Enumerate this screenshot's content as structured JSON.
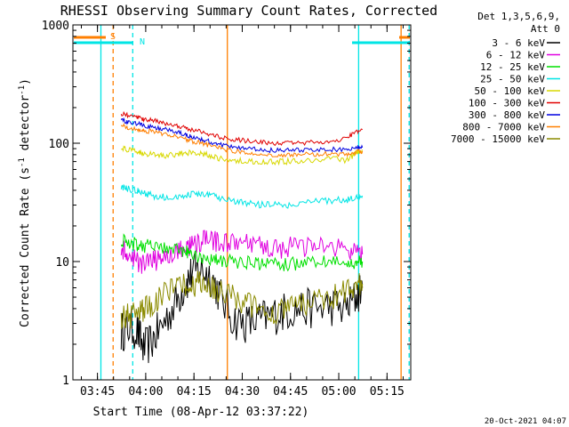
{
  "chart_data": {
    "type": "line",
    "title": "RHESSI Observing Summary Count Rates, Corrected",
    "xlabel": "Start Time (08-Apr-12 03:37:22)",
    "ylabel_main": "Corrected Count Rate (s",
    "ylabel_sup1": "-1",
    "ylabel_mid": " detector",
    "ylabel_sup2": "-1",
    "ylabel_end": ")",
    "yscale": "log",
    "ylim": [
      1,
      1000
    ],
    "xlim_minutes": [
      0,
      105
    ],
    "y_ticks": [
      {
        "value": 1,
        "label": "1"
      },
      {
        "value": 10,
        "label": "10"
      },
      {
        "value": 100,
        "label": "100"
      },
      {
        "value": 1000,
        "label": "1000"
      }
    ],
    "x_ticks": [
      {
        "minute": 7.63,
        "label": "03:45"
      },
      {
        "minute": 22.63,
        "label": "04:00"
      },
      {
        "minute": 37.63,
        "label": "04:15"
      },
      {
        "minute": 52.63,
        "label": "04:30"
      },
      {
        "minute": 67.63,
        "label": "04:45"
      },
      {
        "minute": 82.63,
        "label": "05:00"
      },
      {
        "minute": 97.63,
        "label": "05:15"
      }
    ],
    "legend_header": [
      "Det 1,3,5,6,9,",
      "Att 0"
    ],
    "legend_position": "right",
    "flag_labels": [
      {
        "text": "S",
        "color": "#ff7f00"
      },
      {
        "text": "N",
        "color": "#00e5e5"
      }
    ],
    "flag_lines": [
      {
        "minute": 8.7,
        "color": "#00e5e5",
        "style": "solid"
      },
      {
        "minute": 12.5,
        "color": "#ff7f00",
        "style": "dashed"
      },
      {
        "minute": 18.6,
        "color": "#00e5e5",
        "style": "dashed"
      },
      {
        "minute": 48.0,
        "color": "#ff7f00",
        "style": "solid"
      },
      {
        "minute": 88.8,
        "color": "#00e5e5",
        "style": "solid"
      },
      {
        "minute": 102.0,
        "color": "#ff7f00",
        "style": "solid"
      },
      {
        "minute": 104.5,
        "color": "#00e5e5",
        "style": "dashed"
      }
    ],
    "series": [
      {
        "name": "3 - 6 keV",
        "color": "#000000",
        "x": [
          15,
          17,
          20,
          22,
          25,
          28,
          32,
          35,
          37,
          40,
          43,
          46,
          50,
          54,
          58,
          62,
          66,
          70,
          75,
          80,
          85,
          88,
          90
        ],
        "y": [
          2.5,
          2.8,
          2.6,
          1.8,
          2.2,
          3.0,
          4.5,
          6.5,
          8.0,
          8.5,
          7.5,
          5.0,
          3.2,
          3.0,
          3.2,
          3.5,
          3.8,
          4.0,
          4.0,
          4.2,
          4.0,
          5.0,
          6.0
        ]
      },
      {
        "name": "6 - 12 keV",
        "color": "#e000e0",
        "x": [
          15,
          17,
          20,
          22,
          25,
          28,
          32,
          35,
          37,
          40,
          43,
          46,
          50,
          54,
          58,
          62,
          66,
          70,
          75,
          80,
          85,
          88,
          90
        ],
        "y": [
          13,
          11,
          10,
          9.5,
          10,
          11,
          12,
          13,
          14,
          15,
          15,
          14.5,
          14,
          14,
          13.5,
          13,
          13,
          13.5,
          13,
          13.5,
          12.5,
          11.5,
          11.5
        ]
      },
      {
        "name": "12 - 25 keV",
        "color": "#00e000",
        "x": [
          15,
          17,
          20,
          22,
          25,
          28,
          32,
          35,
          37,
          40,
          43,
          46,
          50,
          54,
          58,
          62,
          66,
          70,
          75,
          80,
          85,
          88,
          90
        ],
        "y": [
          15,
          14.5,
          14,
          13.5,
          13.5,
          13,
          12.5,
          12,
          11.5,
          11,
          10.5,
          10,
          10,
          9.8,
          9.6,
          9.5,
          9.5,
          9.6,
          9.8,
          10,
          9.5,
          9.8,
          10
        ]
      },
      {
        "name": "25 - 50 keV",
        "color": "#00e5e5",
        "x": [
          15,
          17,
          20,
          22,
          25,
          28,
          32,
          35,
          37,
          40,
          43,
          46,
          50,
          54,
          58,
          62,
          66,
          70,
          75,
          80,
          85,
          88,
          90
        ],
        "y": [
          42,
          41,
          40,
          38,
          36,
          35,
          35,
          36,
          37,
          37,
          36,
          34,
          32,
          31,
          30,
          30,
          30,
          31,
          32,
          33,
          33,
          35,
          36
        ]
      },
      {
        "name": "50 - 100 keV",
        "color": "#d8d800",
        "x": [
          15,
          17,
          20,
          22,
          25,
          28,
          32,
          35,
          37,
          40,
          43,
          46,
          50,
          54,
          58,
          62,
          66,
          70,
          75,
          80,
          85,
          88,
          90
        ],
        "y": [
          90,
          88,
          85,
          82,
          80,
          78,
          80,
          83,
          84,
          82,
          78,
          74,
          72,
          70,
          70,
          70,
          70,
          71,
          72,
          74,
          72,
          82,
          88
        ]
      },
      {
        "name": "100 - 300 keV",
        "color": "#e00000",
        "x": [
          15,
          17,
          20,
          22,
          25,
          28,
          32,
          35,
          37,
          40,
          43,
          46,
          50,
          54,
          58,
          62,
          66,
          70,
          75,
          80,
          85,
          88,
          90
        ],
        "y": [
          178,
          172,
          165,
          160,
          155,
          150,
          140,
          135,
          130,
          125,
          118,
          112,
          108,
          105,
          102,
          100,
          100,
          100,
          102,
          105,
          110,
          125,
          130
        ]
      },
      {
        "name": "300 - 800 keV",
        "color": "#0000e0",
        "x": [
          15,
          17,
          20,
          22,
          25,
          28,
          32,
          35,
          37,
          40,
          43,
          46,
          50,
          54,
          58,
          62,
          66,
          70,
          75,
          80,
          85,
          88,
          90
        ],
        "y": [
          158,
          152,
          146,
          140,
          136,
          132,
          124,
          118,
          112,
          108,
          102,
          97,
          93,
          90,
          88,
          87,
          87,
          88,
          88,
          89,
          88,
          92,
          92
        ]
      },
      {
        "name": "800 - 7000 keV",
        "color": "#ff7f00",
        "x": [
          15,
          17,
          20,
          22,
          25,
          28,
          32,
          35,
          37,
          40,
          43,
          46,
          50,
          54,
          58,
          62,
          66,
          70,
          75,
          80,
          85,
          88,
          90
        ],
        "y": [
          142,
          137,
          132,
          128,
          124,
          120,
          114,
          108,
          104,
          100,
          95,
          90,
          86,
          83,
          80,
          80,
          79,
          80,
          81,
          82,
          80,
          84,
          86
        ]
      },
      {
        "name": "7000 - 15000 keV",
        "color": "#8b8b00",
        "x": [
          15,
          17,
          20,
          22,
          25,
          28,
          32,
          35,
          37,
          40,
          43,
          46,
          50,
          54,
          58,
          62,
          66,
          70,
          75,
          80,
          85,
          88,
          90
        ],
        "y": [
          3.5,
          3.5,
          3.5,
          4.0,
          4.5,
          5.5,
          6.0,
          6.5,
          6.5,
          6.5,
          6.0,
          5.5,
          5.0,
          4.5,
          4.0,
          3.8,
          3.8,
          4.2,
          4.5,
          5.0,
          5.5,
          6.0,
          6.5
        ]
      }
    ]
  },
  "footer": {
    "stamp": "20-Oct-2021 04:07"
  }
}
